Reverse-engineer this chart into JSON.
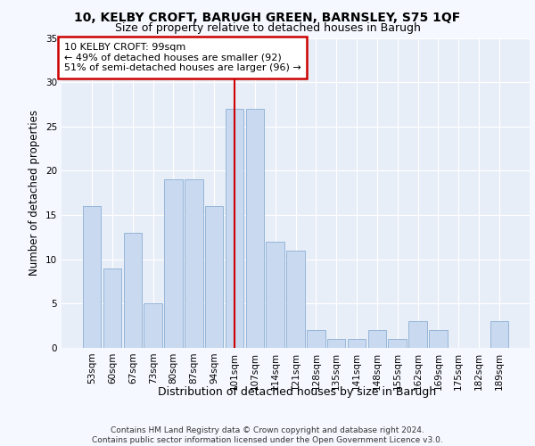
{
  "title1": "10, KELBY CROFT, BARUGH GREEN, BARNSLEY, S75 1QF",
  "title2": "Size of property relative to detached houses in Barugh",
  "xlabel": "Distribution of detached houses by size in Barugh",
  "ylabel": "Number of detached properties",
  "categories": [
    "53sqm",
    "60sqm",
    "67sqm",
    "73sqm",
    "80sqm",
    "87sqm",
    "94sqm",
    "101sqm",
    "107sqm",
    "114sqm",
    "121sqm",
    "128sqm",
    "135sqm",
    "141sqm",
    "148sqm",
    "155sqm",
    "162sqm",
    "169sqm",
    "175sqm",
    "182sqm",
    "189sqm"
  ],
  "values": [
    16,
    9,
    13,
    5,
    19,
    19,
    16,
    27,
    27,
    12,
    11,
    2,
    1,
    1,
    2,
    1,
    3,
    2,
    0,
    0,
    3
  ],
  "bar_color": "#c9d9f0",
  "bar_edge_color": "#8bafd4",
  "vline_x": 7,
  "vline_color": "#cc0000",
  "annotation_text": "10 KELBY CROFT: 99sqm\n← 49% of detached houses are smaller (92)\n51% of semi-detached houses are larger (96) →",
  "annotation_box_color": "#ffffff",
  "annotation_box_edge_color": "#cc0000",
  "ylim": [
    0,
    35
  ],
  "yticks": [
    0,
    5,
    10,
    15,
    20,
    25,
    30,
    35
  ],
  "background_color": "#e8eef7",
  "grid_color": "#ffffff",
  "fig_background": "#f5f8ff",
  "footer": "Contains HM Land Registry data © Crown copyright and database right 2024.\nContains public sector information licensed under the Open Government Licence v3.0."
}
